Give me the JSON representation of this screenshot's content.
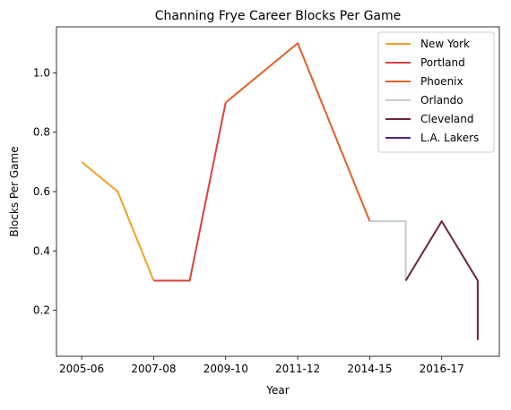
{
  "chart_data": {
    "type": "line",
    "title": "Channing Frye Career Blocks Per Game",
    "xlabel": "Year",
    "ylabel": "Blocks Per Game",
    "x_tick_labels": [
      "2005-06",
      "2007-08",
      "2009-10",
      "2011-12",
      "2014-15",
      "2016-17"
    ],
    "x_tick_positions": [
      0,
      2,
      4,
      6,
      8,
      10
    ],
    "y_ticks": [
      0.2,
      0.4,
      0.6,
      0.8,
      1.0
    ],
    "y_tick_labels": [
      "0.2",
      "0.4",
      "0.6",
      "0.8",
      "1.0"
    ],
    "xlim": [
      -0.7,
      11.6
    ],
    "ylim": [
      0.045,
      1.155
    ],
    "legend_position": "top-right",
    "grid": false,
    "series": [
      {
        "name": "New York",
        "color": "#f4a022",
        "points": [
          [
            0,
            0.7
          ],
          [
            1,
            0.6
          ],
          [
            2,
            0.3
          ]
        ]
      },
      {
        "name": "Portland",
        "color": "#d9423d",
        "points": [
          [
            2,
            0.3
          ],
          [
            3,
            0.3
          ],
          [
            4,
            0.9
          ]
        ]
      },
      {
        "name": "Phoenix",
        "color": "#e15f28",
        "points": [
          [
            4,
            0.9
          ],
          [
            6,
            1.1
          ],
          [
            8,
            0.5
          ]
        ]
      },
      {
        "name": "Orlando",
        "color": "#c4cdcd",
        "points": [
          [
            8,
            0.5
          ],
          [
            9,
            0.5
          ],
          [
            9,
            0.3
          ]
        ]
      },
      {
        "name": "Cleveland",
        "color": "#6e2140",
        "points": [
          [
            9,
            0.3
          ],
          [
            10,
            0.5
          ],
          [
            11,
            0.3
          ],
          [
            11,
            0.1
          ]
        ]
      },
      {
        "name": "L.A. Lakers",
        "color": "#552583",
        "points": []
      }
    ]
  }
}
